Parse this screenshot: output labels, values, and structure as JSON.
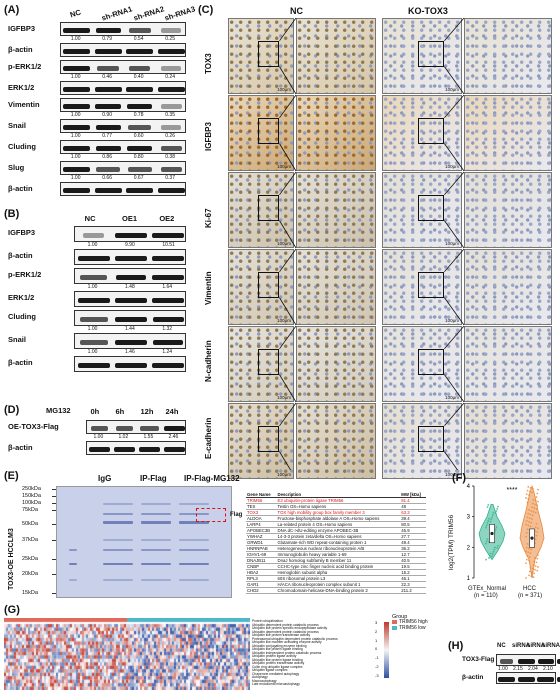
{
  "panelA": {
    "letter": "(A)",
    "lanes": [
      "NC",
      "sh-RNA1",
      "sh-RNA2",
      "sh-RNA3"
    ],
    "rows": [
      {
        "name": "IGFBP3",
        "quant": [
          "1.00",
          "0.79",
          "0.54",
          "0.25"
        ]
      },
      {
        "name": "β-actin",
        "quant": []
      },
      {
        "name": "p-ERK1/2",
        "quant": [
          "1.00",
          "0.46",
          "0.40",
          "0.24"
        ]
      },
      {
        "name": "ERK1/2",
        "quant": []
      },
      {
        "name": "Vimentin",
        "quant": [
          "1.00",
          "0.90",
          "0.78",
          "0.35"
        ]
      },
      {
        "name": "Snail",
        "quant": [
          "1.00",
          "0.77",
          "0.60",
          "0.26"
        ]
      },
      {
        "name": "Cluding",
        "quant": [
          "1.00",
          "0.86",
          "0.80",
          "0.38"
        ]
      },
      {
        "name": "Slug",
        "quant": [
          "1.00",
          "0.66",
          "0.67",
          "0.37"
        ]
      },
      {
        "name": "β-actin",
        "quant": []
      }
    ]
  },
  "panelB": {
    "letter": "(B)",
    "lanes": [
      "NC",
      "OE1",
      "OE2"
    ],
    "rows": [
      {
        "name": "IGFBP3",
        "quant": [
          "1.00",
          "9.90",
          "10.51"
        ]
      },
      {
        "name": "β-actin",
        "quant": []
      },
      {
        "name": "p-ERK1/2",
        "quant": [
          "1.00",
          "1.48",
          "1.64"
        ]
      },
      {
        "name": "ERK1/2",
        "quant": []
      },
      {
        "name": "Cluding",
        "quant": [
          "1.00",
          "1.44",
          "1.32"
        ]
      },
      {
        "name": "Snail",
        "quant": [
          "1.00",
          "1.46",
          "1.24"
        ]
      },
      {
        "name": "β-actin",
        "quant": []
      }
    ]
  },
  "panelC": {
    "letter": "(C)",
    "col_nc": "NC",
    "col_ko": "KO-TOX3",
    "rows": [
      "TOX3",
      "IGFBP3",
      "Ki-67",
      "Vimentin",
      "N-cadherin",
      "E-cadherin"
    ],
    "scale": "100μm"
  },
  "panelD": {
    "letter": "(D)",
    "treatment": "MG132",
    "lanes": [
      "0h",
      "6h",
      "12h",
      "24h"
    ],
    "rows": [
      {
        "name": "OE-TOX3-Flag",
        "quant": [
          "1.00",
          "1.02",
          "1.55",
          "2.46"
        ]
      },
      {
        "name": "β-actin",
        "quant": []
      }
    ]
  },
  "panelE": {
    "letter": "(E)",
    "lanes": [
      "IgG",
      "IP-Flag",
      "IP-Flag-MG132"
    ],
    "side_label": "TOX3-OE HCCLM3",
    "flag_label": "Flag",
    "markers": [
      "250kDa",
      "150kDa",
      "100kDa",
      "75kDa",
      "50kDa",
      "37kDa",
      "25kDa",
      "20kDa",
      "15kDa"
    ],
    "table_headers": [
      "Gene Name",
      "Description",
      "MW [kDa]"
    ],
    "table_rows": [
      {
        "gene": "TRIM56",
        "desc": "E3 ubiquitin-protein ligase TRIM56",
        "mw": "81.4",
        "hl": true
      },
      {
        "gene": "TES",
        "desc": "Testin OS=Homo sapiens",
        "mw": "48",
        "hl": false
      },
      {
        "gene": "TOX3",
        "desc": "TOX high mobility group box family member 3",
        "mw": "63.3",
        "hl": true
      },
      {
        "gene": "ALDOA",
        "desc": "Fructose-bisphosphate aldolase A OS=Homo sapiens",
        "mw": "39.4",
        "hl": false
      },
      {
        "gene": "LARP4",
        "desc": "La-related protein 4 OS=Homo sapiens",
        "mw": "80.5",
        "hl": false
      },
      {
        "gene": "APOBEC3B",
        "desc": "DNA dC->dU-editing enzyme APOBEC-3B",
        "mw": "45.9",
        "hl": false
      },
      {
        "gene": "YWHAZ",
        "desc": "14-3-3 protein zeta/delta OS=Homo sapiens",
        "mw": "27.7",
        "hl": false
      },
      {
        "gene": "GRWD1",
        "desc": "Glutamate-rich WD repeat-containing protein 1",
        "mw": "49.4",
        "hl": false
      },
      {
        "gene": "HNRNPAB",
        "desc": "Heterogeneous nuclear ribonucleoprotein A/B",
        "mw": "36.2",
        "hl": false
      },
      {
        "gene": "IGHV1-69",
        "desc": "Immunoglobulin heavy variable 1-69",
        "mw": "12.7",
        "hl": false
      },
      {
        "gene": "DNAJB11",
        "desc": "DnaJ homolog subfamily B member 11",
        "mw": "40.5",
        "hl": false
      },
      {
        "gene": "CNBP",
        "desc": "CCHC-type zinc finger nucleic acid binding protein",
        "mw": "19.5",
        "hl": false
      },
      {
        "gene": "HBA2",
        "desc": "Hemoglobin subunit alpha",
        "mw": "15.2",
        "hl": false
      },
      {
        "gene": "RPL3",
        "desc": "60S ribosomal protein L3",
        "mw": "46.1",
        "hl": false
      },
      {
        "gene": "GAR1",
        "desc": "H/ACA ribonucleoprotein complex subunit 1",
        "mw": "22.3",
        "hl": false
      },
      {
        "gene": "CHD2",
        "desc": "Chromodomain-helicase-DNA-binding protein 2",
        "mw": "211.2",
        "hl": false
      }
    ]
  },
  "panelF": {
    "letter": "(F)",
    "ylabel": "log2(TPM) TRIM56",
    "significance": "****",
    "chart_data": {
      "type": "violin",
      "categories": [
        "GTEx_Normal",
        "HCC"
      ],
      "n_labels": [
        "(n = 110)",
        "(n = 371)"
      ],
      "medians": [
        2.45,
        2.3
      ],
      "ylim": [
        1,
        4
      ],
      "yticks": [
        1,
        2,
        3,
        4
      ],
      "colors": [
        "#2fb38c",
        "#e9883b"
      ]
    }
  },
  "panelG": {
    "letter": "(G)",
    "legend_title": "Group",
    "legend_items": [
      {
        "label": "TRIM56 high",
        "color": "#e06b5b"
      },
      {
        "label": "TRIM56 low",
        "color": "#4fb8c8"
      }
    ],
    "scale_ticks": [
      "3",
      "2",
      "1",
      "0",
      "-1",
      "-2",
      "-3"
    ],
    "terms": [
      "Protein ubiquitination",
      "Ubiquitin dependent protein catabolic process",
      "Ubiquitin like protein specific endopeptidase activity",
      "Ubiquitin dependent protein catabolic process",
      "Ubiquitin like protein transferase activity",
      "Proteasomal ubiquitin dependent protein catabolic process",
      "Ubiquitin like modifier activating enzyme activity",
      "Ubiquitin conjugating enzyme binding",
      "Ubiquitin like protein ligase binding",
      "Ubiquitin independent protein catabolic process",
      "Ubiquitin protein ligase activity",
      "Ubiquitin like protein ligase binding",
      "Ubiquitin protein transferase activity",
      "Cullin ring ubiquitin ligase complex",
      "Ubiquitin ligase complex",
      "Chaperone mediated autophagy",
      "Autophagy",
      "Macroautophagy",
      "Late endosomal microautophagy"
    ]
  },
  "panelH": {
    "letter": "(H)",
    "lanes": [
      "NC",
      "siRNA",
      "siRNA",
      "siRNA"
    ],
    "rows": [
      {
        "name": "TOX3-Flag",
        "quant": [
          "1.00",
          "2.15",
          "2.04",
          "2.10"
        ]
      },
      {
        "name": "β-actin",
        "quant": []
      }
    ]
  }
}
